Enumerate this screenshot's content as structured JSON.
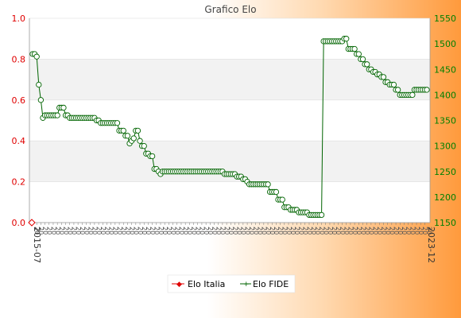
{
  "chart_data": {
    "type": "line",
    "title": "Grafico Elo",
    "left_axis": {
      "ylim": [
        0.0,
        1.0
      ],
      "ticks": [
        "0.0",
        "0.2",
        "0.4",
        "0.6",
        "0.8",
        "1.0"
      ],
      "color": "#e00000"
    },
    "right_axis": {
      "ylim": [
        1150,
        1550
      ],
      "ticks": [
        "1150",
        "1200",
        "1250",
        "1300",
        "1350",
        "1400",
        "1450",
        "1500",
        "1550"
      ],
      "color": "#008000"
    },
    "grid": true,
    "legend_position": "bottom-center",
    "x_first_label": "2015-07",
    "x_last_label": "2023-12",
    "series": [
      {
        "name": "Elo Italia",
        "axis": "left",
        "color": "#e00000",
        "values": [
          0.0
        ]
      },
      {
        "name": "Elo FIDE",
        "axis": "right",
        "color": "#006400",
        "values": [
          1480,
          1480,
          1475,
          1420,
          1390,
          1355,
          1360,
          1360,
          1360,
          1360,
          1360,
          1360,
          1360,
          1375,
          1375,
          1375,
          1360,
          1360,
          1355,
          1355,
          1355,
          1355,
          1355,
          1355,
          1355,
          1355,
          1355,
          1355,
          1355,
          1355,
          1355,
          1350,
          1350,
          1345,
          1345,
          1345,
          1345,
          1345,
          1345,
          1345,
          1345,
          1345,
          1330,
          1330,
          1330,
          1320,
          1320,
          1305,
          1310,
          1315,
          1330,
          1330,
          1310,
          1300,
          1300,
          1285,
          1285,
          1280,
          1280,
          1255,
          1255,
          1250,
          1245,
          1250,
          1250,
          1250,
          1250,
          1250,
          1250,
          1250,
          1250,
          1250,
          1250,
          1250,
          1250,
          1250,
          1250,
          1250,
          1250,
          1250,
          1250,
          1250,
          1250,
          1250,
          1250,
          1250,
          1250,
          1250,
          1250,
          1250,
          1250,
          1250,
          1250,
          1245,
          1245,
          1245,
          1245,
          1245,
          1245,
          1240,
          1240,
          1240,
          1235,
          1235,
          1230,
          1225,
          1225,
          1225,
          1225,
          1225,
          1225,
          1225,
          1225,
          1225,
          1225,
          1210,
          1210,
          1210,
          1210,
          1195,
          1195,
          1195,
          1180,
          1180,
          1180,
          1175,
          1175,
          1175,
          1175,
          1170,
          1170,
          1170,
          1170,
          1170,
          1165,
          1165,
          1165,
          1165,
          1165,
          1165,
          1165,
          1505,
          1505,
          1505,
          1505,
          1505,
          1505,
          1505,
          1505,
          1505,
          1505,
          1510,
          1510,
          1490,
          1490,
          1490,
          1490,
          1480,
          1480,
          1470,
          1470,
          1460,
          1460,
          1450,
          1450,
          1445,
          1445,
          1440,
          1440,
          1435,
          1435,
          1425,
          1425,
          1420,
          1420,
          1420,
          1410,
          1410,
          1400,
          1400,
          1400,
          1400,
          1400,
          1400,
          1400,
          1410,
          1410,
          1410,
          1410,
          1410,
          1410,
          1410
        ]
      }
    ]
  }
}
